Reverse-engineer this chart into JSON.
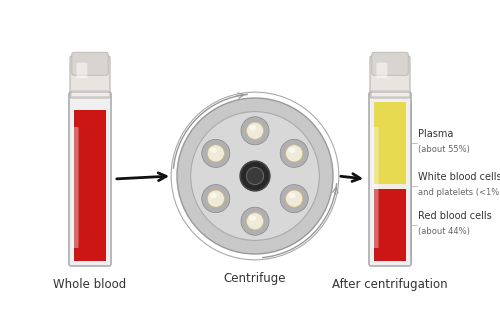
{
  "bg_color": "#ffffff",
  "title_whole_blood": "Whole blood",
  "title_centrifuge": "Centrifuge",
  "title_after": "After centrifugation",
  "label_plasma": "Plasma\n(about 55%)",
  "label_wbc": "White blood cells\nand platelets (<1%)",
  "label_rbc": "Red blood cells\n(about 44%)",
  "color_red": "#cc1515",
  "color_red_light": "#dd2222",
  "color_yellow": "#e8da50",
  "color_yellow_light": "#f0e870",
  "color_white_layer": "#f2ede0",
  "color_tube_body": "#f0f0f0",
  "color_tube_glass": "#e8e8e8",
  "color_tube_cap_top": "#d8d5d0",
  "color_tube_cap_body": "#e8e5e0",
  "color_centrifuge_bg": "#c8c8c8",
  "color_centrifuge_rim": "#999999",
  "color_centrifuge_inner": "#d8d8d8",
  "color_centrifuge_arm": "#b0b0b0",
  "color_centrifuge_hole_fill": "#f0ead8",
  "color_centrifuge_hole_edge": "#c8b890",
  "color_centrifuge_center": "#282828",
  "color_centrifuge_center_ring": "#555555",
  "color_arc": "#999999",
  "color_arrow": "#111111",
  "color_text": "#333333",
  "font_size_title": 8.5,
  "font_size_label_bold": 7.0,
  "font_size_label_sub": 6.0
}
